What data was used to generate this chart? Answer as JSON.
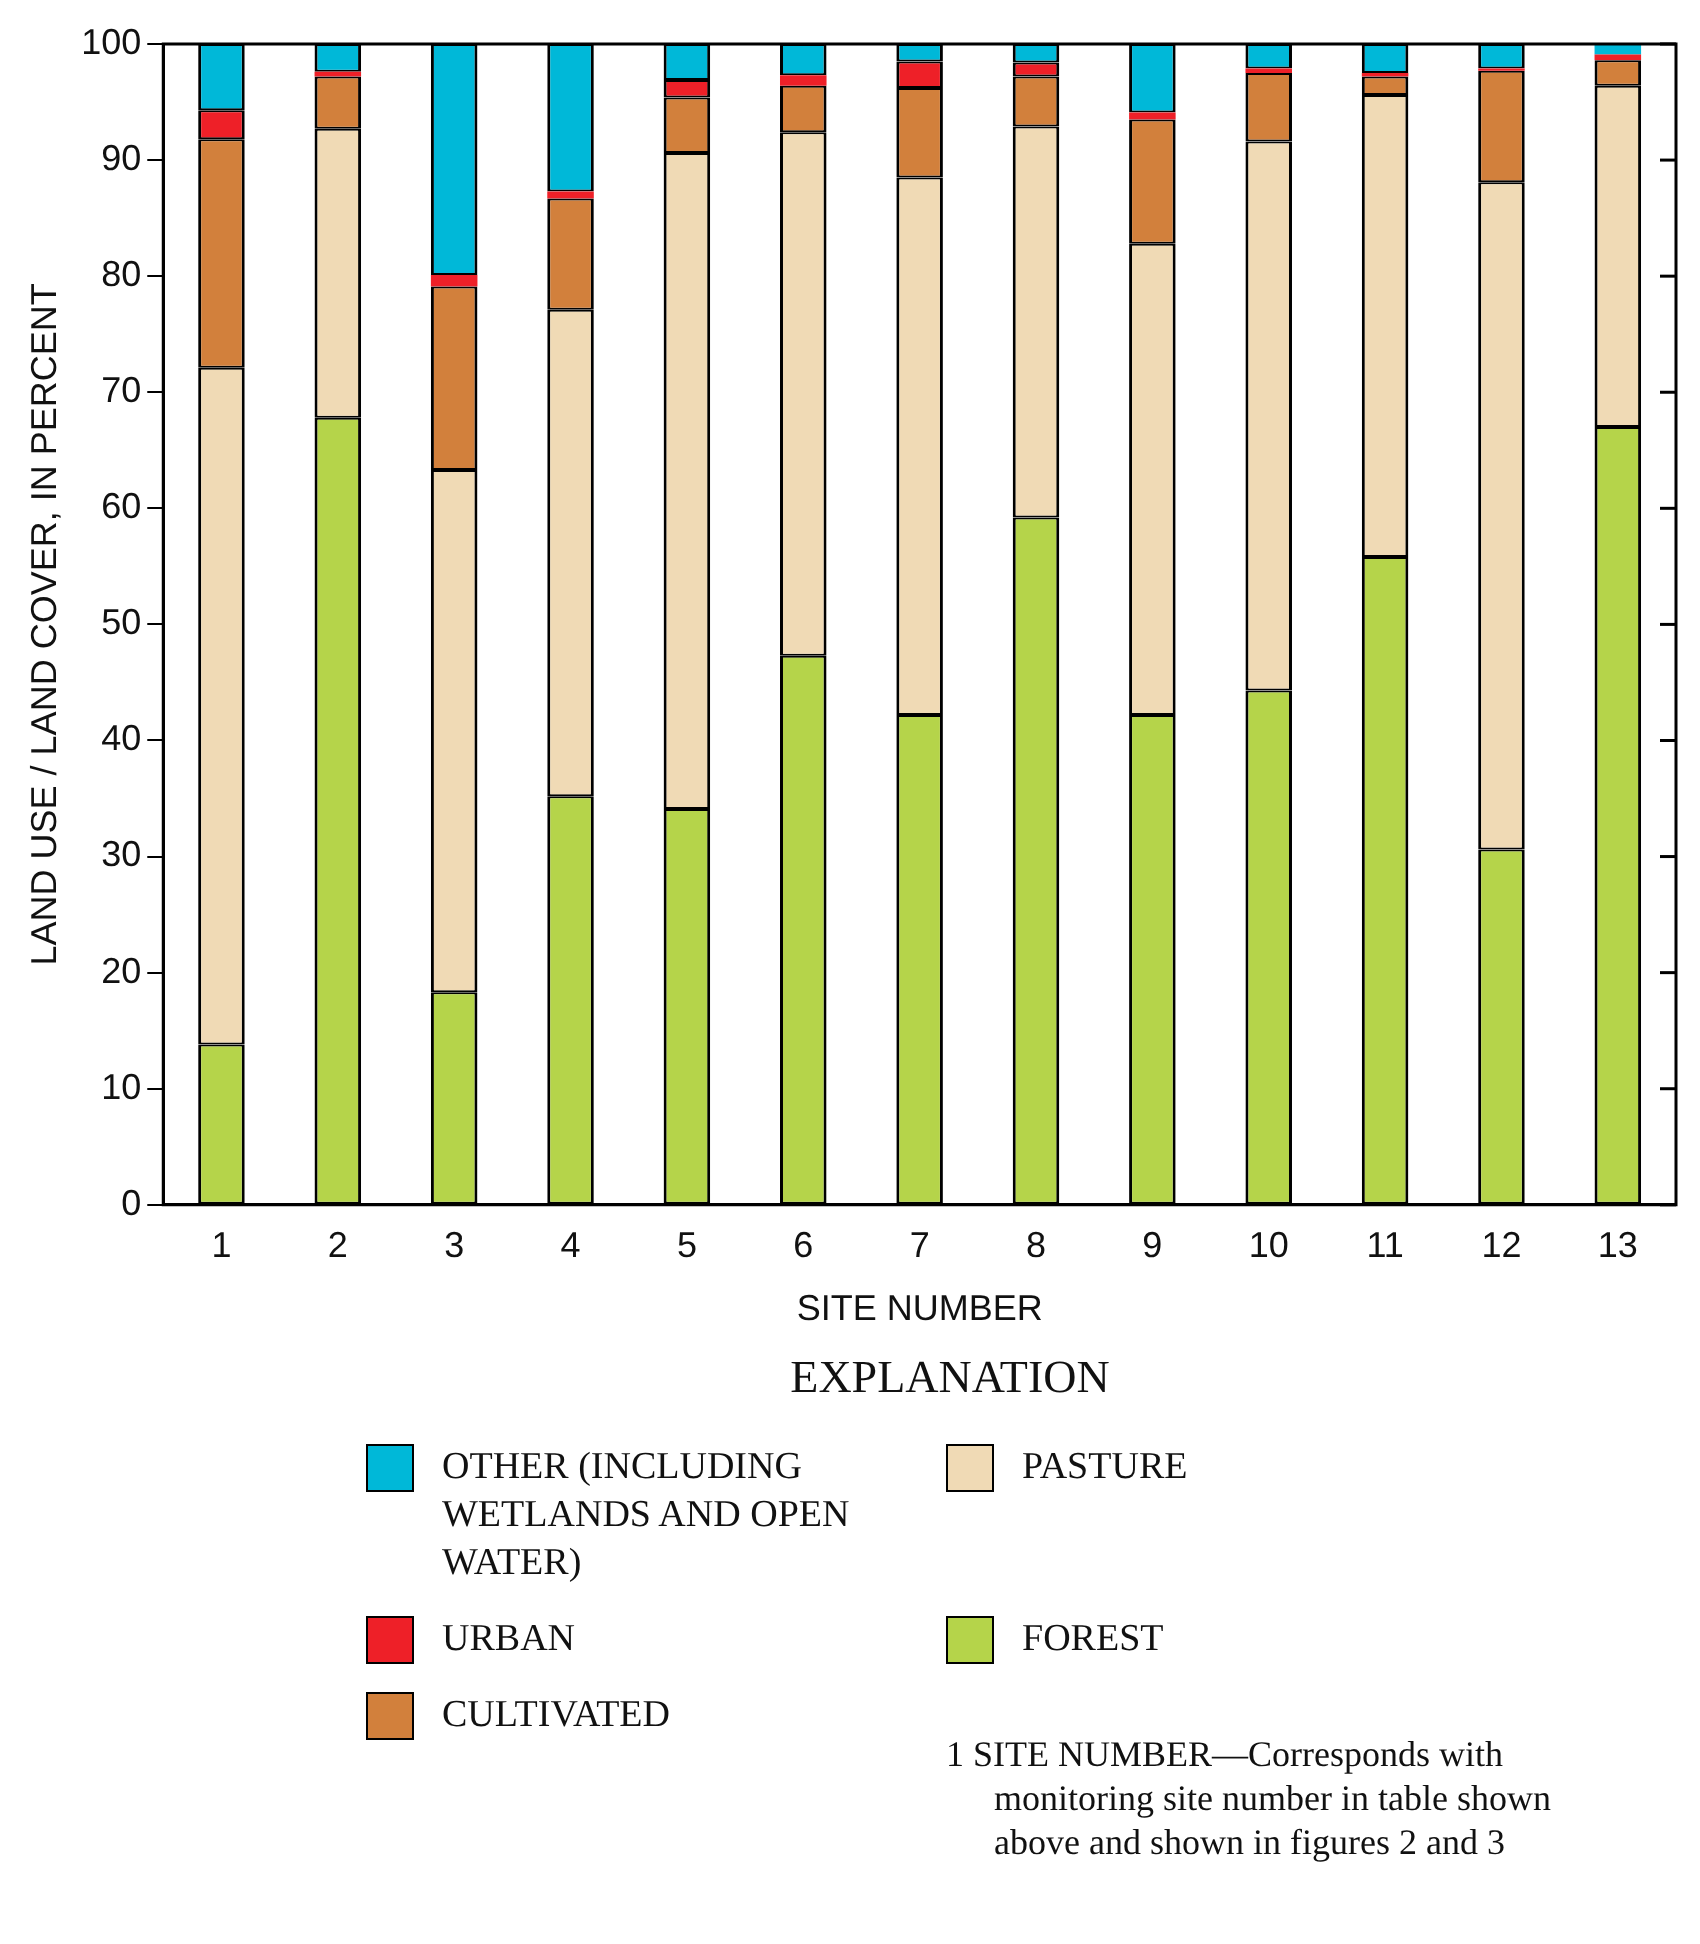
{
  "chart_data": {
    "type": "bar",
    "stacked": true,
    "xlabel": "SITE NUMBER",
    "ylabel": "LAND USE / LAND COVER, IN PERCENT",
    "legend_title": "EXPLANATION",
    "legend": "bottom",
    "grid": false,
    "categories": [
      "1",
      "2",
      "3",
      "4",
      "5",
      "6",
      "7",
      "8",
      "9",
      "10",
      "11",
      "12",
      "13"
    ],
    "ylim": [
      0,
      100
    ],
    "yticks": [
      0,
      10,
      20,
      30,
      40,
      50,
      60,
      70,
      80,
      90,
      100
    ],
    "series": [
      {
        "name": "FOREST",
        "color": "#b5d44a",
        "values": [
          13.8,
          67.8,
          18.3,
          35.2,
          34.1,
          47.3,
          42.2,
          59.2,
          42.2,
          44.3,
          55.8,
          30.6,
          67.0
        ]
      },
      {
        "name": "PASTURE",
        "color": "#f0dab5",
        "values": [
          58.3,
          24.9,
          45.0,
          41.9,
          56.5,
          45.1,
          46.3,
          33.7,
          40.6,
          47.3,
          39.8,
          57.5,
          29.4
        ]
      },
      {
        "name": "CULTIVATED",
        "color": "#d2803c",
        "values": [
          19.7,
          4.5,
          15.8,
          9.6,
          4.8,
          4.0,
          7.7,
          4.3,
          10.7,
          5.9,
          1.6,
          9.6,
          2.2
        ]
      },
      {
        "name": "URBAN",
        "color": "#ee2028",
        "values": [
          2.5,
          0.4,
          1.0,
          0.6,
          1.5,
          0.9,
          2.3,
          1.2,
          0.6,
          0.4,
          0.3,
          0.2,
          0.5
        ]
      },
      {
        "name": "OTHER (INCLUDING WETLANDS AND OPEN WATER)",
        "color": "#00b8d8",
        "values": [
          5.7,
          2.4,
          19.9,
          12.7,
          3.1,
          2.7,
          1.5,
          1.6,
          5.9,
          2.1,
          2.5,
          2.1,
          0.9
        ]
      }
    ],
    "annotations": [
      "1 SITE NUMBER—Corresponds with monitoring site number in table shown above and shown in figures 2 and 3"
    ]
  }
}
